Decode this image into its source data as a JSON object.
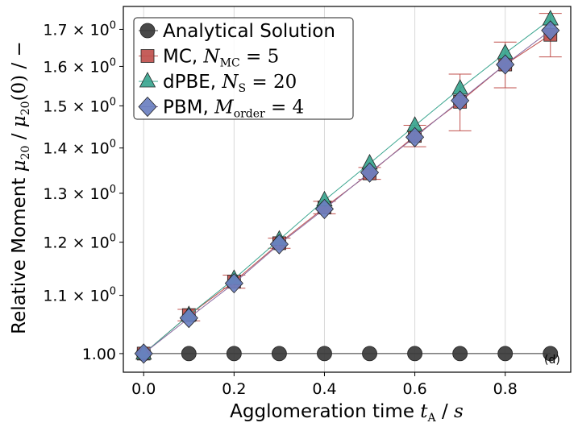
{
  "chart_data": {
    "type": "line",
    "panel_label": "(d)",
    "xlabel": {
      "text": "Agglomeration time ",
      "math": "t",
      "math_sub": "A",
      "unit_sep": " / ",
      "unit": "s"
    },
    "ylabel": {
      "text": "Relative Moment ",
      "math": "μ",
      "math_sub": "20",
      "sep1": " / ",
      "math2": "μ",
      "math2_sub": "20",
      "math2_arg": "(0)",
      "unit_sep": " / ",
      "unit": "−"
    },
    "x_ticks": [
      "0.0",
      "0.2",
      "0.4",
      "0.6",
      "0.8"
    ],
    "x_tick_values": [
      0.0,
      0.2,
      0.4,
      0.6,
      0.8
    ],
    "y_ticks": [
      {
        "value": 1.0,
        "label": "1.00"
      },
      {
        "value": 1.1,
        "base": "1.1 × 10",
        "exp": "0"
      },
      {
        "value": 1.2,
        "base": "1.2 × 10",
        "exp": "0"
      },
      {
        "value": 1.3,
        "base": "1.3 × 10",
        "exp": "0"
      },
      {
        "value": 1.4,
        "base": "1.4 × 10",
        "exp": "0"
      },
      {
        "value": 1.5,
        "base": "1.5 × 10",
        "exp": "0"
      },
      {
        "value": 1.6,
        "base": "1.6 × 10",
        "exp": "0"
      },
      {
        "value": 1.7,
        "base": "1.7 × 10",
        "exp": "0"
      }
    ],
    "xlim": [
      -0.045,
      0.945
    ],
    "ylim": [
      0.97,
      1.765
    ],
    "y_scale": "log",
    "grid": "x-major",
    "legend_position": "top-left",
    "series": [
      {
        "name": "Analytical Solution",
        "name_math": "",
        "name_sub": "",
        "name_rhs": "",
        "marker": "circle",
        "color": "#3a3a3a",
        "line_color": "#333333",
        "x": [
          0.0,
          0.1,
          0.2,
          0.3,
          0.4,
          0.5,
          0.6,
          0.7,
          0.8,
          0.9
        ],
        "y": [
          1.0,
          1.0,
          1.0,
          1.0,
          1.0,
          1.0,
          1.0,
          1.0,
          1.0,
          1.0
        ]
      },
      {
        "name": "MC, ",
        "name_math": "N",
        "name_sub": "MC",
        "name_rhs": " = 5",
        "marker": "square",
        "color": "#c0504d",
        "line_color": "#c0504d",
        "x": [
          0.0,
          0.1,
          0.2,
          0.3,
          0.4,
          0.5,
          0.6,
          0.7,
          0.8,
          0.9
        ],
        "y": [
          1.0,
          1.065,
          1.125,
          1.198,
          1.27,
          1.343,
          1.428,
          1.51,
          1.605,
          1.685
        ],
        "err": [
          0.0,
          0.01,
          0.012,
          0.01,
          0.013,
          0.013,
          0.025,
          0.07,
          0.06,
          0.06
        ]
      },
      {
        "name": "dPBE, ",
        "name_math": "N",
        "name_sub": "S",
        "name_rhs": " = 20",
        "marker": "triangle",
        "color": "#3aa58f",
        "line_color": "#3aa58f",
        "x": [
          0.0,
          0.1,
          0.2,
          0.3,
          0.4,
          0.5,
          0.6,
          0.7,
          0.8,
          0.9
        ],
        "y": [
          1.0,
          1.065,
          1.13,
          1.205,
          1.285,
          1.365,
          1.452,
          1.543,
          1.635,
          1.728
        ]
      },
      {
        "name": "PBM, ",
        "name_math": "M",
        "name_sub": "order",
        "name_rhs": " = 4",
        "marker": "diamond",
        "color": "#6a7fc0",
        "line_color": "#8a6aa0",
        "x": [
          0.0,
          0.1,
          0.2,
          0.3,
          0.4,
          0.5,
          0.6,
          0.7,
          0.8,
          0.9
        ],
        "y": [
          1.0,
          1.06,
          1.122,
          1.196,
          1.267,
          1.345,
          1.425,
          1.513,
          1.605,
          1.697
        ]
      }
    ]
  }
}
